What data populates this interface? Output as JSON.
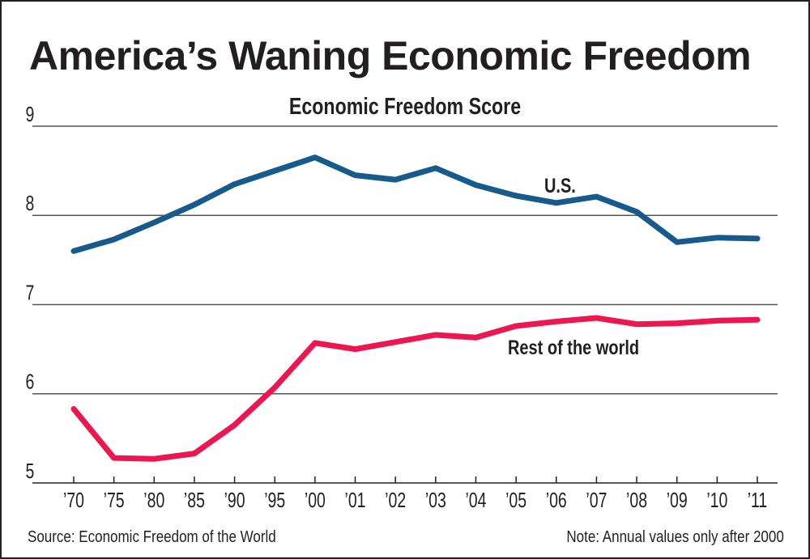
{
  "chart_data": {
    "type": "line",
    "title": "America’s Waning Economic Freedom",
    "subtitle": "Economic Freedom Score",
    "categories": [
      "’70",
      "’75",
      "’80",
      "’85",
      "’90",
      "’95",
      "’00",
      "’01",
      "’02",
      "’03",
      "’04",
      "’05",
      "’06",
      "’07",
      "’08",
      "’09",
      "’10",
      "’11"
    ],
    "y_ticks": [
      5,
      6,
      7,
      8,
      9
    ],
    "ylim": [
      5,
      9
    ],
    "grid": true,
    "series": [
      {
        "name": "U.S.",
        "color": "#175a8c",
        "values": [
          7.6,
          7.73,
          7.92,
          8.12,
          8.35,
          8.5,
          8.65,
          8.45,
          8.4,
          8.53,
          8.34,
          8.22,
          8.14,
          8.21,
          8.04,
          7.7,
          7.75,
          7.74
        ]
      },
      {
        "name": "Rest of the world",
        "color": "#ee1651",
        "values": [
          5.83,
          5.28,
          5.27,
          5.33,
          5.65,
          6.07,
          6.57,
          6.5,
          6.58,
          6.66,
          6.63,
          6.76,
          6.81,
          6.85,
          6.78,
          6.79,
          6.82,
          6.83
        ]
      }
    ],
    "source": "Source: Economic Freedom of the World",
    "note": "Note: Annual values only after 2000"
  }
}
